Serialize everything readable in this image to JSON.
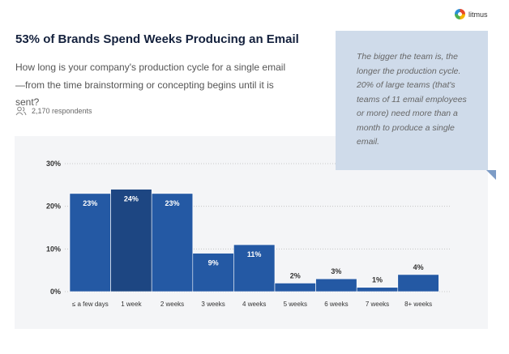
{
  "brand": {
    "name": "litmus"
  },
  "header": {
    "title": "53% of Brands Spend Weeks Producing an Email",
    "question": "How long is your company's production cycle for a single email—from the time brainstorming or concepting begins until it is sent?",
    "respondents": "2,170 respondents"
  },
  "callout": {
    "text": "The bigger the team is, the longer the production cycle. 20% of large teams (that's teams of 11 email employees or more) need more than a month to produce a single email."
  },
  "colors": {
    "bar": "#2459a4",
    "highlight": "#1d4682",
    "callout": "#cfdbea"
  },
  "chart_data": {
    "type": "bar",
    "categories": [
      "≤ a few days",
      "1 week",
      "2 weeks",
      "3 weeks",
      "4 weeks",
      "5 weeks",
      "6 weeks",
      "7 weeks",
      "8+ weeks"
    ],
    "values": [
      23,
      24,
      23,
      9,
      11,
      2,
      3,
      1,
      4
    ],
    "value_labels": [
      "23%",
      "24%",
      "23%",
      "9%",
      "11%",
      "2%",
      "3%",
      "1%",
      "4%"
    ],
    "highlight_index": 1,
    "ylim": [
      0,
      30
    ],
    "yticks": [
      "0%",
      "10%",
      "20%",
      "30%"
    ],
    "grid": true,
    "xlabel": "",
    "ylabel": ""
  }
}
